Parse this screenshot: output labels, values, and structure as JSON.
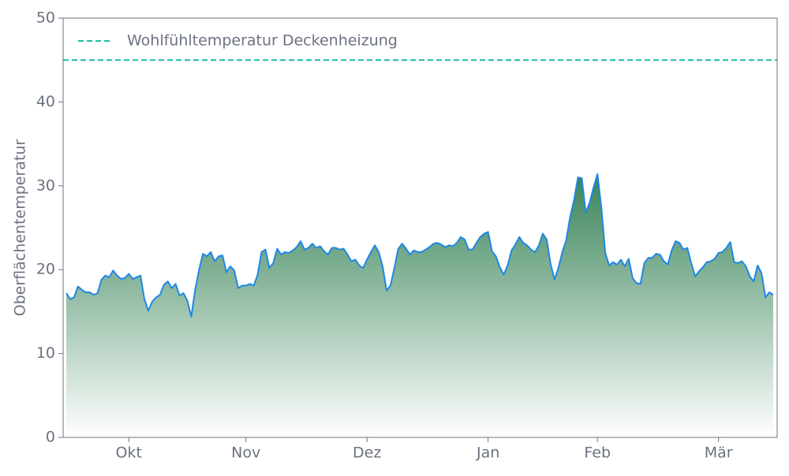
{
  "chart_data": {
    "type": "area",
    "y_label": "Oberflächentemperatur",
    "ylim": [
      0,
      50
    ],
    "yticks": [
      0,
      10,
      20,
      30,
      40,
      50
    ],
    "color": "#1e88e5",
    "fill_colors": [
      "#2e7d4f",
      "#ffffff"
    ],
    "legend_position": "upper left",
    "reference_lines": [
      {
        "name": "Wohlfühltemperatur Deckenheizung",
        "value": 45,
        "color": "#1abc9c"
      }
    ],
    "categories": [
      null,
      null,
      null,
      null,
      null,
      null,
      null,
      null,
      null,
      null,
      null,
      null,
      null,
      null,
      null,
      null,
      "Okt",
      null,
      null,
      null,
      null,
      null,
      null,
      null,
      null,
      null,
      null,
      null,
      null,
      null,
      null,
      null,
      null,
      null,
      null,
      null,
      null,
      null,
      null,
      null,
      null,
      null,
      null,
      null,
      null,
      null,
      "Nov",
      null,
      null,
      null,
      null,
      null,
      null,
      null,
      null,
      null,
      null,
      null,
      null,
      null,
      null,
      null,
      null,
      null,
      null,
      null,
      null,
      null,
      null,
      null,
      null,
      null,
      null,
      null,
      null,
      null,
      null,
      "Dez",
      null,
      null,
      null,
      null,
      null,
      null,
      null,
      null,
      null,
      null,
      null,
      null,
      null,
      null,
      null,
      null,
      null,
      null,
      null,
      null,
      null,
      null,
      null,
      null,
      null,
      null,
      null,
      null,
      null,
      null,
      "Jan",
      null,
      null,
      null,
      null,
      null,
      null,
      null,
      null,
      null,
      null,
      null,
      null,
      null,
      null,
      null,
      null,
      null,
      null,
      null,
      null,
      null,
      null,
      null,
      null,
      null,
      null,
      null,
      "Feb",
      null,
      null,
      null,
      null,
      null,
      null,
      null,
      null,
      null,
      null,
      null,
      null,
      null,
      null,
      null,
      null,
      null,
      null,
      null,
      null,
      null,
      null,
      null,
      null,
      null,
      null,
      null,
      null,
      null,
      null,
      "Mär",
      null,
      null,
      null,
      null,
      null,
      null,
      null,
      null,
      null,
      null,
      null,
      null,
      null,
      null
    ],
    "values": [
      17.2,
      16.5,
      16.7,
      18,
      17.6,
      17.3,
      17.3,
      17,
      17.2,
      18.8,
      19.3,
      19.1,
      19.9,
      19.3,
      18.9,
      19,
      19.5,
      18.9,
      19.1,
      19.3,
      16.5,
      15.1,
      16.2,
      16.7,
      17,
      18.2,
      18.6,
      17.8,
      18.3,
      16.9,
      17.2,
      16.3,
      14.4,
      17.6,
      20,
      21.9,
      21.6,
      22.1,
      21,
      21.6,
      21.7,
      19.7,
      20.4,
      19.9,
      17.8,
      18.1,
      18.1,
      18.3,
      18.1,
      19.4,
      22.1,
      22.4,
      20.2,
      20.8,
      22.5,
      21.8,
      22.1,
      22,
      22.3,
      22.7,
      23.4,
      22.4,
      22.6,
      23.1,
      22.6,
      22.8,
      22.2,
      21.8,
      22.6,
      22.6,
      22.4,
      22.5,
      21.8,
      21,
      21.2,
      20.5,
      20.2,
      21.2,
      22.1,
      22.9,
      22.1,
      20.4,
      17.5,
      18.1,
      20.2,
      22.5,
      23.1,
      22.5,
      21.8,
      22.3,
      22.1,
      22.1,
      22.4,
      22.7,
      23.1,
      23.2,
      23,
      22.7,
      22.9,
      22.8,
      23.2,
      23.9,
      23.6,
      22.4,
      22.4,
      23.2,
      23.9,
      24.3,
      24.5,
      22.2,
      21.6,
      20.3,
      19.4,
      20.5,
      22.3,
      23,
      23.9,
      23.2,
      22.9,
      22.4,
      22.1,
      22.9,
      24.3,
      23.6,
      20.7,
      18.8,
      20.2,
      22.1,
      23.5,
      26.3,
      28.3,
      31,
      30.9,
      26.8,
      28,
      29.8,
      31.4,
      27.4,
      22,
      20.5,
      20.9,
      20.6,
      21.2,
      20.4,
      21.3,
      19,
      18.4,
      18.3,
      20.8,
      21.4,
      21.4,
      21.9,
      21.8,
      21,
      20.6,
      22.3,
      23.4,
      23.2,
      22.4,
      22.6,
      20.8,
      19.2,
      19.8,
      20.3,
      20.9,
      21,
      21.3,
      22,
      22.1,
      22.6,
      23.3,
      20.9,
      20.8,
      21,
      20.4,
      19.2,
      18.6,
      20.5,
      19.6,
      16.7,
      17.3,
      17
    ]
  }
}
